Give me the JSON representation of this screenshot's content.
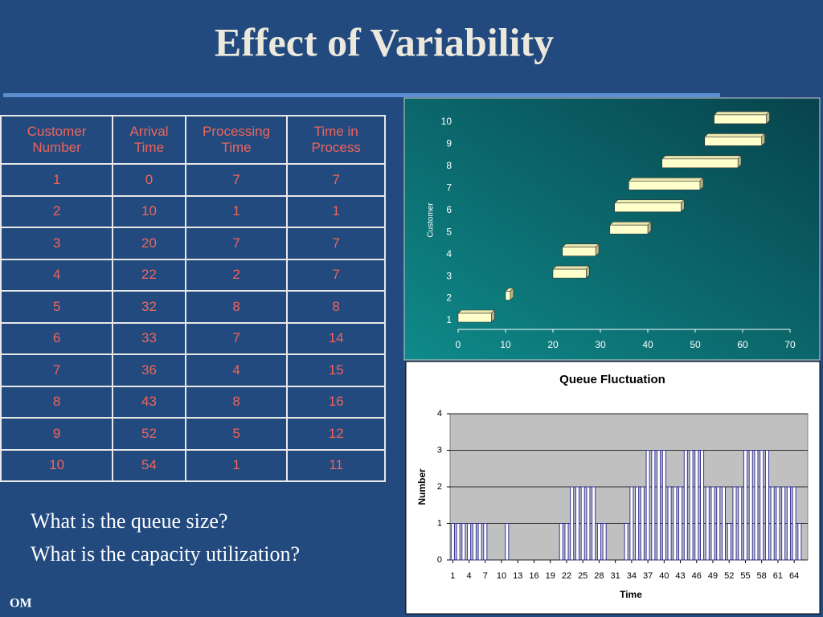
{
  "title": "Effect of Variability",
  "table": {
    "header": [
      "Customer Number",
      "Arrival Time",
      "Processing Time",
      "Time in Process"
    ],
    "rows": [
      [
        1,
        0,
        7,
        7
      ],
      [
        2,
        10,
        1,
        1
      ],
      [
        3,
        20,
        7,
        7
      ],
      [
        4,
        22,
        2,
        7
      ],
      [
        5,
        32,
        8,
        8
      ],
      [
        6,
        33,
        7,
        14
      ],
      [
        7,
        36,
        4,
        15
      ],
      [
        8,
        43,
        8,
        16
      ],
      [
        9,
        52,
        5,
        12
      ],
      [
        10,
        54,
        1,
        11
      ]
    ]
  },
  "chart_data": [
    {
      "type": "gantt",
      "categories": [
        1,
        2,
        3,
        4,
        5,
        6,
        7,
        8,
        9,
        10
      ],
      "start": [
        0,
        10,
        20,
        22,
        32,
        33,
        36,
        43,
        52,
        54
      ],
      "duration": [
        7,
        1,
        7,
        7,
        8,
        14,
        15,
        16,
        12,
        11
      ],
      "color": "#ffffcc",
      "xlim": [
        0,
        70
      ],
      "xticks": [
        0,
        10,
        20,
        30,
        40,
        50,
        60,
        70
      ],
      "ylabel": "Customer"
    },
    {
      "type": "bar",
      "title": "Queue Fluctuation",
      "xlabel": "Time",
      "ylabel": "Number",
      "color": "#ffffff",
      "edgecolor": "#333399",
      "grid": true,
      "ylim": [
        0,
        4
      ],
      "yticks": [
        0,
        1,
        2,
        3,
        4
      ],
      "categories": [
        1,
        null,
        null,
        4,
        null,
        null,
        7,
        null,
        null,
        10,
        null,
        null,
        13,
        null,
        null,
        16,
        null,
        null,
        19,
        null,
        null,
        22,
        null,
        null,
        25,
        null,
        null,
        28,
        null,
        null,
        31,
        null,
        null,
        34,
        null,
        null,
        37,
        null,
        null,
        40,
        null,
        null,
        43,
        null,
        null,
        46,
        null,
        null,
        49,
        null,
        null,
        52,
        null,
        null,
        55,
        null,
        null,
        58,
        null,
        null,
        61,
        null,
        null,
        64,
        null,
        null
      ],
      "values": [
        1,
        1,
        1,
        1,
        1,
        1,
        1,
        0,
        0,
        0,
        1,
        0,
        0,
        0,
        0,
        0,
        0,
        0,
        0,
        0,
        1,
        1,
        2,
        2,
        2,
        2,
        2,
        1,
        1,
        0,
        0,
        0,
        1,
        2,
        2,
        2,
        3,
        3,
        3,
        3,
        2,
        2,
        2,
        3,
        3,
        3,
        3,
        2,
        2,
        2,
        2,
        1,
        2,
        2,
        3,
        3,
        3,
        3,
        3,
        2,
        2,
        2,
        2,
        2,
        1,
        0
      ]
    }
  ],
  "questions": [
    "What is the queue size?",
    "What is the capacity utilization?"
  ],
  "footer": "OM"
}
